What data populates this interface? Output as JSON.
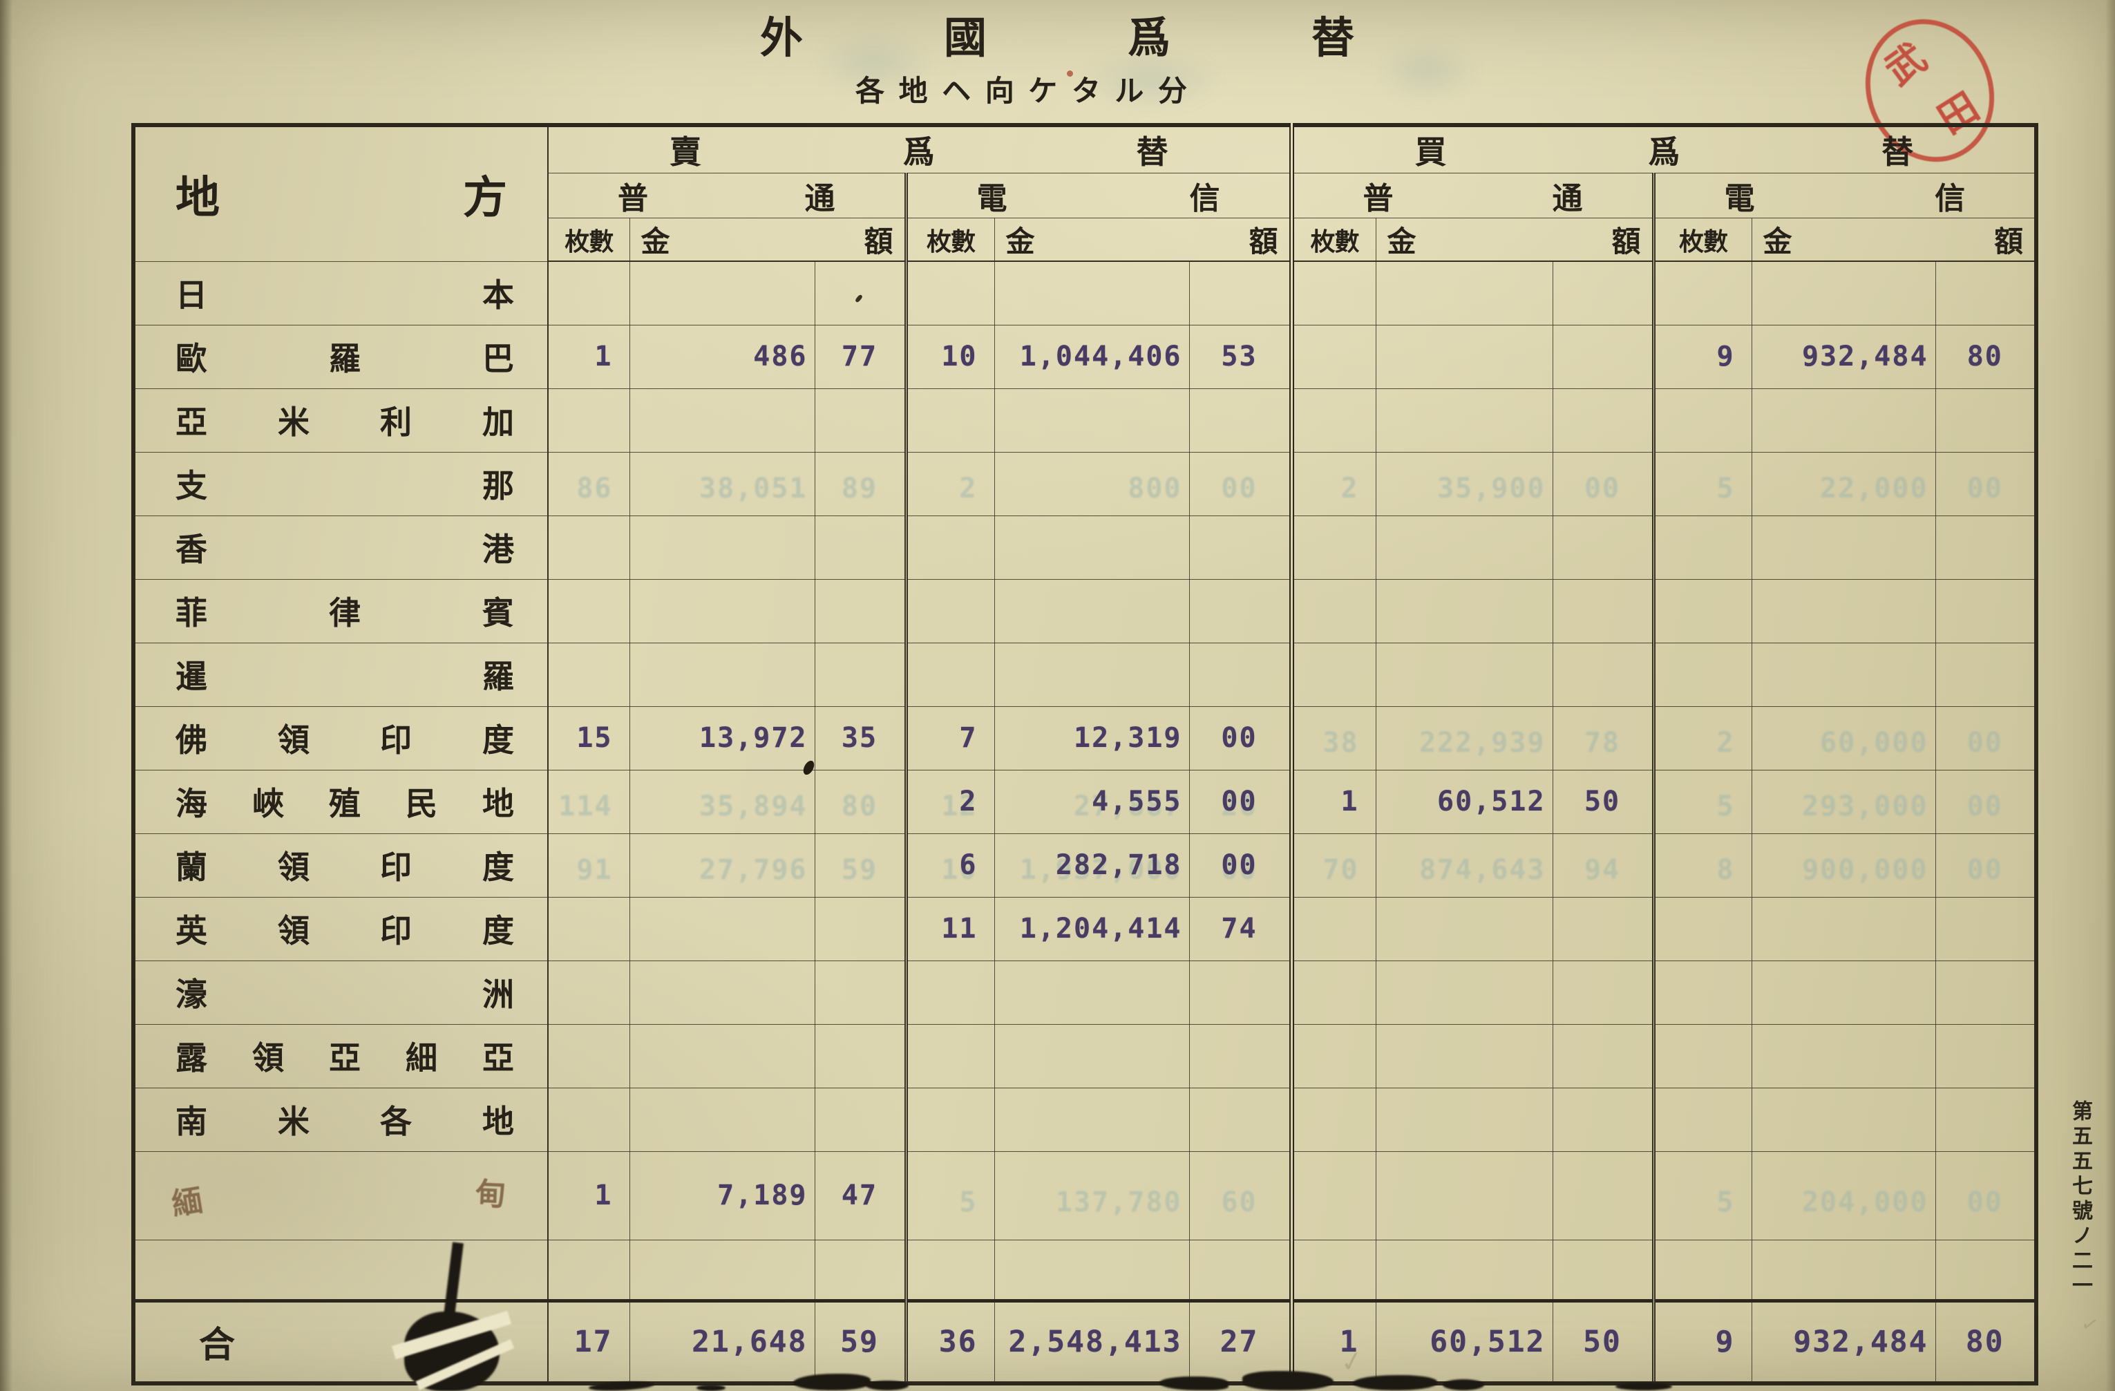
{
  "page": {
    "title": "外國爲替",
    "subtitle": "各地ヘ向ケタル分",
    "stamp_text": "武田",
    "side_note": "第五五七號ノ二一"
  },
  "table": {
    "region_header": "地方",
    "groups": [
      {
        "label": "賣爲替",
        "sub": [
          {
            "label": "普通"
          },
          {
            "label": "電信"
          }
        ]
      },
      {
        "label": "買爲替",
        "sub": [
          {
            "label": "普通"
          },
          {
            "label": "電信"
          }
        ]
      }
    ],
    "col_headers": {
      "count": "枚數",
      "amount_left": "金",
      "amount_right": "額"
    },
    "rows": [
      {
        "name": "日本"
      },
      {
        "name": "歐羅巴",
        "cells": [
          "1",
          "486",
          "77",
          "10",
          "1,044,406",
          "53",
          "",
          "",
          "",
          "9",
          "932,484",
          "80"
        ]
      },
      {
        "name": "亞米利加"
      },
      {
        "name": "支那",
        "ghost_cells": [
          "86",
          "38,051",
          "89",
          "2",
          "800",
          "00",
          "2",
          "35,900",
          "00",
          "5",
          "22,000",
          "00"
        ]
      },
      {
        "name": "香港"
      },
      {
        "name": "菲律賓"
      },
      {
        "name": "暹羅"
      },
      {
        "name": "佛領印度",
        "cells": [
          "15",
          "13,972",
          "35",
          "7",
          "12,319",
          "00",
          "",
          "",
          "",
          "",
          "",
          ""
        ],
        "ghost_cells": [
          "",
          "",
          "",
          "",
          "",
          "",
          "38",
          "222,939",
          "78",
          "2",
          "60,000",
          "00"
        ]
      },
      {
        "name": "海峽殖民地",
        "cells": [
          "",
          "",
          "",
          "2",
          "4,555",
          "00",
          "1",
          "60,512",
          "50",
          "",
          "",
          ""
        ],
        "ghost_cells": [
          "114",
          "35,894",
          "80",
          "12",
          "27,887",
          "26",
          "",
          "",
          "",
          "5",
          "293,000",
          "00"
        ]
      },
      {
        "name": "蘭領印度",
        "cells": [
          "",
          "",
          "",
          "6",
          "282,718",
          "00",
          "",
          "",
          "",
          "",
          "",
          ""
        ],
        "ghost_cells": [
          "91",
          "27,796",
          "59",
          "10",
          "1,937,000",
          "00",
          "70",
          "874,643",
          "94",
          "8",
          "900,000",
          "00"
        ]
      },
      {
        "name": "英領印度",
        "cells": [
          "",
          "",
          "",
          "11",
          "1,204,414",
          "74",
          "",
          "",
          "",
          "",
          "",
          ""
        ]
      },
      {
        "name": "濠洲"
      },
      {
        "name": "露領亞細亞"
      },
      {
        "name": "南米各地"
      },
      {
        "name": "緬甸",
        "handwritten": true,
        "cells": [
          "1",
          "7,189",
          "47",
          "",
          "",
          "",
          "",
          "",
          "",
          "",
          "",
          ""
        ],
        "ghost_cells": [
          "",
          "",
          "",
          "5",
          "137,780",
          "60",
          "",
          "",
          "",
          "5",
          "204,000",
          "00"
        ]
      },
      {
        "name": "",
        "blank": true
      },
      {
        "name": "合計",
        "total": true,
        "cells": [
          "17",
          "21,648",
          "59",
          "36",
          "2,548,413",
          "27",
          "1",
          "60,512",
          "50",
          "9",
          "932,484",
          "80"
        ]
      }
    ]
  }
}
